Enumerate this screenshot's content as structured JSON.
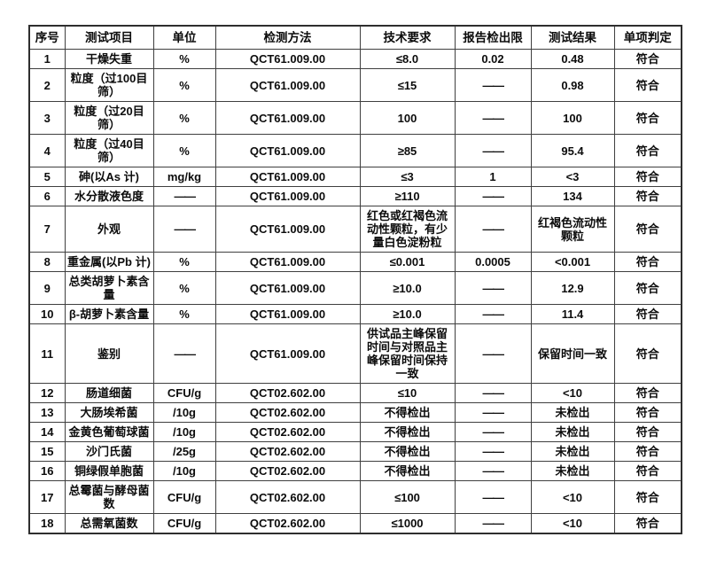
{
  "table": {
    "dash": "——",
    "columns": [
      {
        "key": "no",
        "label": "序号"
      },
      {
        "key": "item",
        "label": "测试项目"
      },
      {
        "key": "unit",
        "label": "单位"
      },
      {
        "key": "method",
        "label": "检测方法"
      },
      {
        "key": "requirement",
        "label": "技术要求"
      },
      {
        "key": "limit",
        "label": "报告检出限"
      },
      {
        "key": "result",
        "label": "测试结果"
      },
      {
        "key": "judgment",
        "label": "单项判定"
      }
    ],
    "rows": [
      [
        "1",
        "干燥失重",
        "%",
        "QCT61.009.00",
        "≤8.0",
        "0.02",
        "0.48",
        "符合"
      ],
      [
        "2",
        "粒度（过100目筛）",
        "%",
        "QCT61.009.00",
        "≤15",
        "——",
        "0.98",
        "符合"
      ],
      [
        "3",
        "粒度（过20目筛）",
        "%",
        "QCT61.009.00",
        "100",
        "——",
        "100",
        "符合"
      ],
      [
        "4",
        "粒度（过40目筛）",
        "%",
        "QCT61.009.00",
        "≥85",
        "——",
        "95.4",
        "符合"
      ],
      [
        "5",
        "砷(以As 计)",
        "mg/kg",
        "QCT61.009.00",
        "≤3",
        "1",
        "<3",
        "符合"
      ],
      [
        "6",
        "水分散液色度",
        "——",
        "QCT61.009.00",
        "≥110",
        "——",
        "134",
        "符合"
      ],
      [
        "7",
        "外观",
        "——",
        "QCT61.009.00",
        "红色或红褐色流动性颗粒，有少量白色淀粉粒",
        "——",
        "红褐色流动性颗粒",
        "符合"
      ],
      [
        "8",
        "重金属(以Pb 计)",
        "%",
        "QCT61.009.00",
        "≤0.001",
        "0.0005",
        "<0.001",
        "符合"
      ],
      [
        "9",
        "总类胡萝卜素含量",
        "%",
        "QCT61.009.00",
        "≥10.0",
        "——",
        "12.9",
        "符合"
      ],
      [
        "10",
        "β-胡萝卜素含量",
        "%",
        "QCT61.009.00",
        "≥10.0",
        "——",
        "11.4",
        "符合"
      ],
      [
        "11",
        "鉴别",
        "——",
        "QCT61.009.00",
        "供试品主峰保留时间与对照品主峰保留时间保持一致",
        "——",
        "保留时间一致",
        "符合"
      ],
      [
        "12",
        "肠道细菌",
        "CFU/g",
        "QCT02.602.00",
        "≤10",
        "——",
        "<10",
        "符合"
      ],
      [
        "13",
        "大肠埃希菌",
        "/10g",
        "QCT02.602.00",
        "不得检出",
        "——",
        "未检出",
        "符合"
      ],
      [
        "14",
        "金黄色葡萄球菌",
        "/10g",
        "QCT02.602.00",
        "不得检出",
        "——",
        "未检出",
        "符合"
      ],
      [
        "15",
        "沙门氏菌",
        "/25g",
        "QCT02.602.00",
        "不得检出",
        "——",
        "未检出",
        "符合"
      ],
      [
        "16",
        "铜绿假单胞菌",
        "/10g",
        "QCT02.602.00",
        "不得检出",
        "——",
        "未检出",
        "符合"
      ],
      [
        "17",
        "总霉菌与酵母菌数",
        "CFU/g",
        "QCT02.602.00",
        "≤100",
        "——",
        "<10",
        "符合"
      ],
      [
        "18",
        "总需氧菌数",
        "CFU/g",
        "QCT02.602.00",
        "≤1000",
        "——",
        "<10",
        "符合"
      ]
    ]
  }
}
